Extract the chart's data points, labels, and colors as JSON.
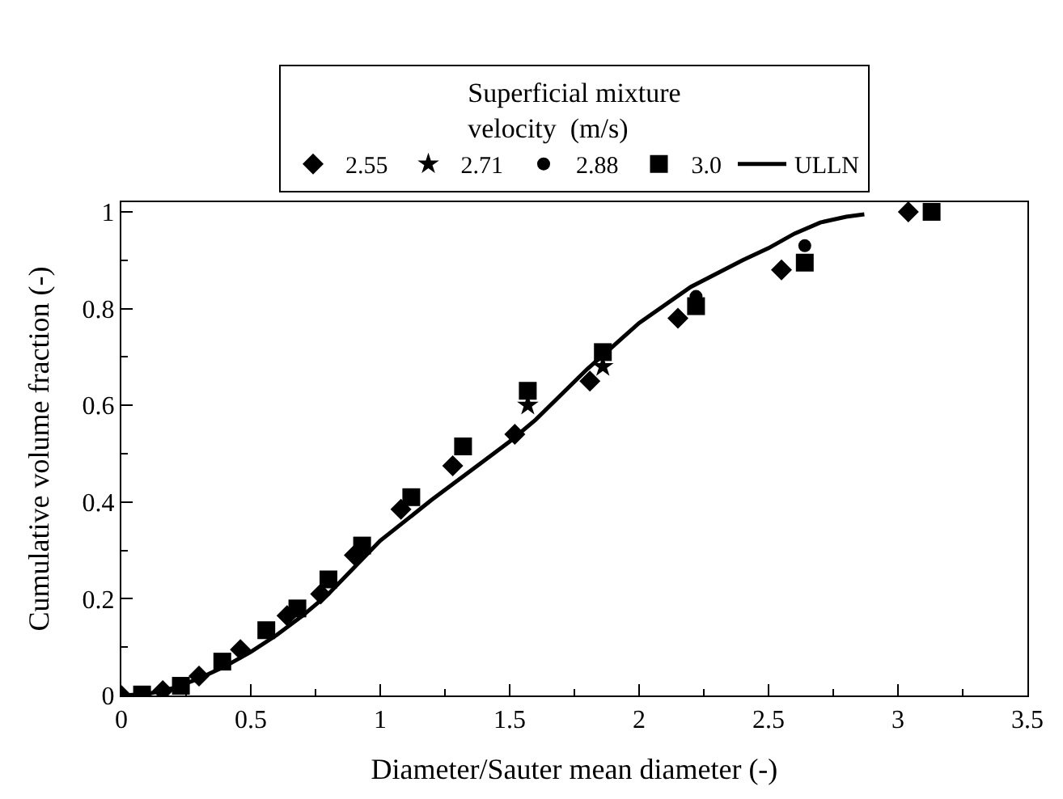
{
  "chart_data": {
    "type": "scatter",
    "xlabel": "Diameter/Sauter mean diameter (-)",
    "ylabel": "Cumulative volume fraction (-)",
    "legend_title": "Superficial mixture\nvelocity  (m/s)",
    "legend": "top",
    "xlim": [
      0,
      3.5
    ],
    "xticks": [
      0,
      0.5,
      1,
      1.5,
      2,
      2.5,
      3,
      3.5
    ],
    "ylim": [
      0,
      1.02
    ],
    "yticks": [
      0,
      0.2,
      0.4,
      0.6,
      0.8,
      1
    ],
    "series": [
      {
        "name": "2.55",
        "color": "#000000",
        "marker": "diamond",
        "x": [
          0,
          0.16,
          0.3,
          0.46,
          0.64,
          0.77,
          0.9,
          1.08,
          1.28,
          1.52,
          1.81,
          2.15,
          2.55,
          3.04
        ],
        "values": [
          0,
          0.01,
          0.04,
          0.095,
          0.165,
          0.21,
          0.29,
          0.385,
          0.475,
          0.54,
          0.65,
          0.78,
          0.88,
          1.0
        ]
      },
      {
        "name": "2.71",
        "color": "#000000",
        "marker": "star",
        "x": [
          1.57,
          1.86
        ],
        "values": [
          0.6,
          0.68
        ]
      },
      {
        "name": "2.88",
        "color": "#000000",
        "marker": "circle",
        "x": [
          2.22,
          2.64
        ],
        "values": [
          0.825,
          0.93
        ]
      },
      {
        "name": "3.0",
        "color": "#000000",
        "marker": "square",
        "x": [
          0.08,
          0.23,
          0.39,
          0.56,
          0.68,
          0.8,
          0.93,
          1.12,
          1.32,
          1.57,
          1.86,
          2.22,
          2.64,
          3.13
        ],
        "values": [
          0.002,
          0.02,
          0.07,
          0.135,
          0.18,
          0.24,
          0.31,
          0.41,
          0.515,
          0.63,
          0.71,
          0.805,
          0.895,
          1.0
        ]
      },
      {
        "name": "ULLN",
        "type": "line",
        "color": "#000000",
        "marker": "none",
        "line_style": "solid",
        "x": [
          0,
          0.1,
          0.2,
          0.3,
          0.4,
          0.5,
          0.6,
          0.7,
          0.8,
          0.9,
          1.0,
          1.2,
          1.4,
          1.5,
          1.6,
          1.8,
          2.0,
          2.2,
          2.4,
          2.5,
          2.6,
          2.7,
          2.8,
          2.87
        ],
        "values": [
          0,
          0.003,
          0.015,
          0.035,
          0.06,
          0.09,
          0.125,
          0.165,
          0.21,
          0.265,
          0.32,
          0.405,
          0.485,
          0.525,
          0.57,
          0.675,
          0.77,
          0.845,
          0.9,
          0.925,
          0.955,
          0.978,
          0.99,
          0.995
        ]
      }
    ]
  }
}
